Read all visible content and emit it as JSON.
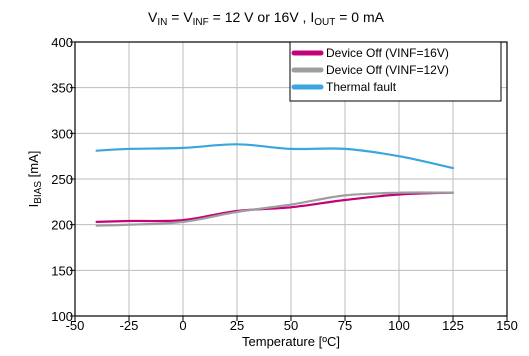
{
  "chart_data": {
    "type": "line",
    "title": {
      "parts": [
        {
          "text": "V",
          "sub": false
        },
        {
          "text": "IN",
          "sub": true
        },
        {
          "text": " = V",
          "sub": false
        },
        {
          "text": "INF",
          "sub": true
        },
        {
          "text": " = 12 V or 16V , I",
          "sub": false
        },
        {
          "text": "OUT",
          "sub": true
        },
        {
          "text": " = 0 mA",
          "sub": false
        }
      ]
    },
    "xlabel": "Temperature [ºC]",
    "ylabel": {
      "main": "I",
      "sub": "BIAS",
      "unit": " [mA]"
    },
    "xlim": [
      -50,
      150
    ],
    "ylim": [
      100,
      400
    ],
    "xticks": [
      "-50",
      "-25",
      "0",
      "25",
      "50",
      "75",
      "100",
      "125",
      "150"
    ],
    "yticks": [
      "100",
      "150",
      "200",
      "250",
      "300",
      "350",
      "400"
    ],
    "grid": true,
    "legend_position": "top-right",
    "series": [
      {
        "name": "Device Off (VINF=16V)",
        "color": "#c4007a",
        "x": [
          -40,
          -25,
          0,
          25,
          50,
          75,
          100,
          125
        ],
        "y": [
          203,
          204,
          205,
          215,
          219,
          227,
          233,
          235
        ]
      },
      {
        "name": "Device Off  (VINF=12V)",
        "color": "#9e9e9e",
        "x": [
          -40,
          -25,
          0,
          25,
          50,
          75,
          100,
          125
        ],
        "y": [
          199,
          200,
          203,
          214,
          222,
          232,
          235,
          235
        ]
      },
      {
        "name": "Thermal fault",
        "color": "#3aa6dd",
        "x": [
          -40,
          -25,
          0,
          25,
          50,
          75,
          100,
          125
        ],
        "y": [
          281,
          283,
          284,
          288,
          283,
          283,
          275,
          262
        ]
      }
    ]
  }
}
